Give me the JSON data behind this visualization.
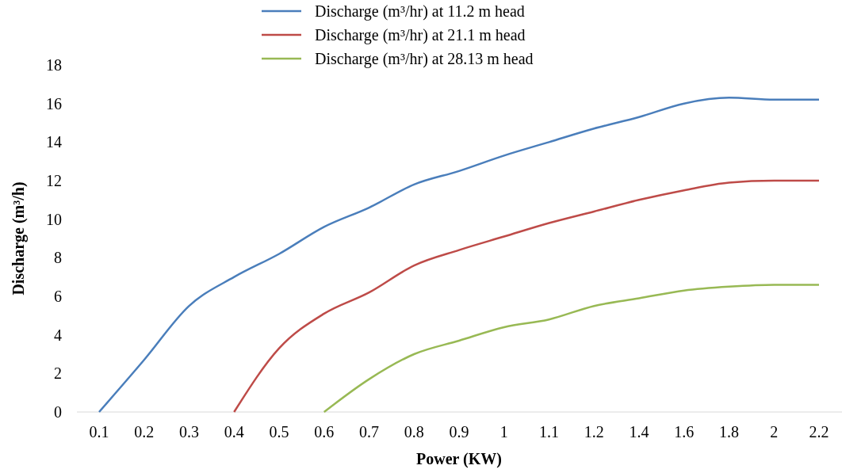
{
  "chart_data": {
    "type": "line",
    "xlabel": "Power (KW)",
    "ylabel": "Discharge (m³/h)",
    "categories": [
      "0.1",
      "0.2",
      "0.3",
      "0.4",
      "0.5",
      "0.6",
      "0.7",
      "0.8",
      "0.9",
      "1",
      "1.1",
      "1.2",
      "1.4",
      "1.6",
      "1.8",
      "2",
      "2.2"
    ],
    "ylim": [
      0,
      18
    ],
    "yticks": [
      0,
      2,
      4,
      6,
      8,
      10,
      12,
      14,
      16,
      18
    ],
    "legend": "top",
    "grid": false,
    "marker": "none",
    "series": [
      {
        "name": "Discharge (m³/hr) at 11.2 m head",
        "color": "#4a7ebb",
        "values": [
          0,
          2.7,
          5.5,
          7.0,
          8.2,
          9.6,
          10.6,
          11.8,
          12.5,
          13.3,
          14.0,
          14.7,
          15.3,
          16.0,
          16.3,
          16.2,
          16.2
        ]
      },
      {
        "name": "Discharge (m³/hr) at 21.1 m head",
        "color": "#be4b48",
        "values": [
          null,
          null,
          null,
          0,
          3.3,
          5.1,
          6.2,
          7.6,
          8.4,
          9.1,
          9.8,
          10.4,
          11.0,
          11.5,
          11.9,
          12.0,
          12.0
        ]
      },
      {
        "name": "Discharge (m³/hr) at 28.13 m head",
        "color": "#98b954",
        "values": [
          null,
          null,
          null,
          null,
          null,
          0,
          1.7,
          3.0,
          3.7,
          4.4,
          4.8,
          5.5,
          5.9,
          6.3,
          6.5,
          6.6,
          6.6
        ]
      }
    ]
  }
}
